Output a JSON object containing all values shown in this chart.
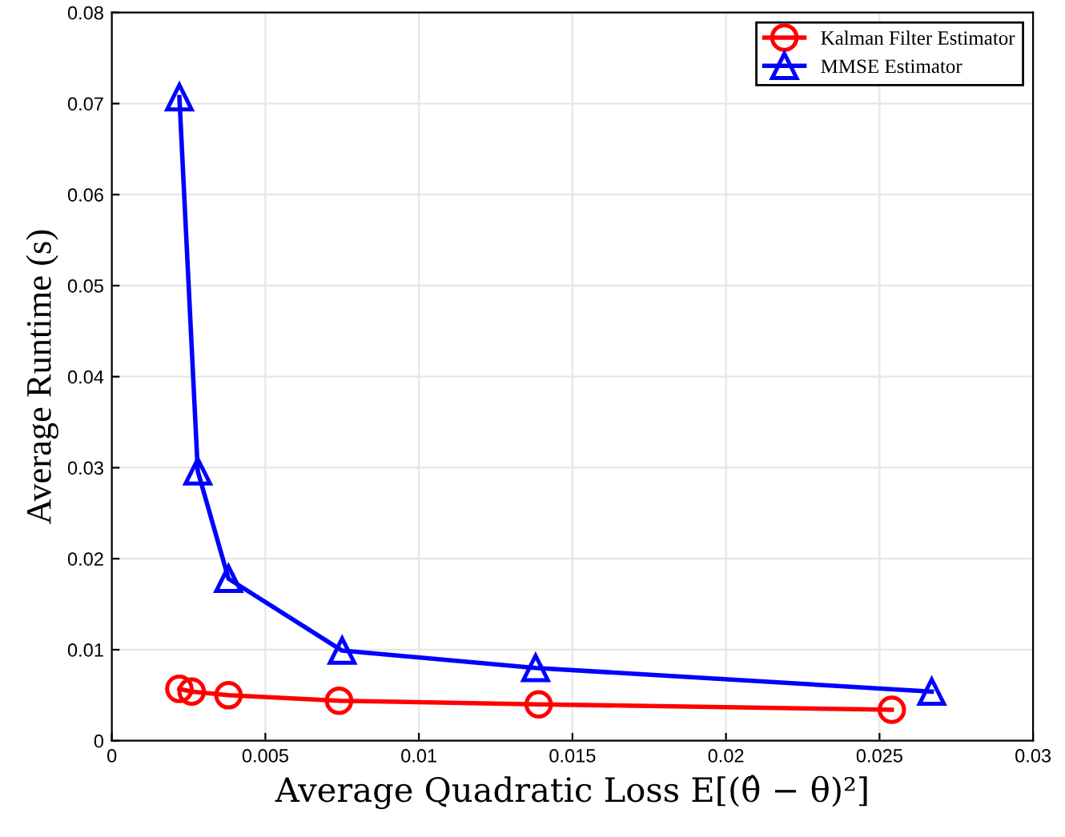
{
  "chart_data": {
    "type": "line",
    "xlabel": "Average Quadratic Loss E[(θ̂ − θ)²]",
    "ylabel": "Average Runtime (s)",
    "xlim": [
      0,
      0.03
    ],
    "xticks": [
      0,
      0.005,
      0.01,
      0.015,
      0.02,
      0.025,
      0.03
    ],
    "ylim": [
      0,
      0.08
    ],
    "yticks": [
      0,
      0.01,
      0.02,
      0.03,
      0.04,
      0.05,
      0.06,
      0.07,
      0.08
    ],
    "grid": true,
    "legend": "top right",
    "line_style": "solid",
    "series": [
      {
        "name": "Kalman Filter Estimator",
        "color": "#ff0000",
        "marker": "circle",
        "x": [
          0.0022,
          0.0026,
          0.0038,
          0.0074,
          0.0139,
          0.0254
        ],
        "values": [
          0.0057,
          0.0054,
          0.005,
          0.0044,
          0.004,
          0.0034
        ]
      },
      {
        "name": "MMSE Estimator",
        "color": "#0000ff",
        "marker": "triangle",
        "x": [
          0.0022,
          0.0028,
          0.0038,
          0.0075,
          0.0138,
          0.0267
        ],
        "values": [
          0.0707,
          0.0296,
          0.0178,
          0.0099,
          0.008,
          0.0054
        ]
      }
    ]
  }
}
